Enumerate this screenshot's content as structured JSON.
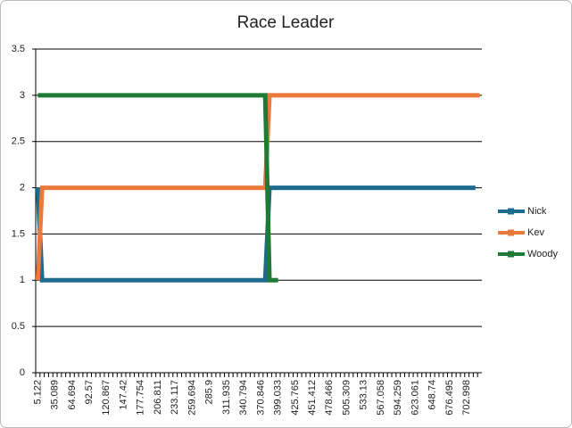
{
  "chart_data": {
    "type": "line",
    "title": "Race Leader",
    "categories": [
      "5.122",
      null,
      null,
      null,
      "35.089",
      null,
      null,
      null,
      "64.694",
      null,
      null,
      null,
      "92.57",
      null,
      null,
      null,
      "120.867",
      null,
      null,
      null,
      "147.42",
      null,
      null,
      null,
      "177.754",
      null,
      null,
      null,
      "206.811",
      null,
      null,
      null,
      "233.117",
      null,
      null,
      null,
      "259.694",
      null,
      null,
      null,
      "285.9",
      null,
      null,
      null,
      "311.935",
      null,
      null,
      null,
      "340.794",
      null,
      null,
      null,
      "370.846",
      null,
      null,
      null,
      "399.033",
      null,
      null,
      null,
      "425.765",
      null,
      null,
      null,
      "451.412",
      null,
      null,
      null,
      "478.466",
      null,
      null,
      null,
      "505.309",
      null,
      null,
      null,
      "533.13",
      null,
      null,
      null,
      "567.058",
      null,
      null,
      null,
      "594.259",
      null,
      null,
      null,
      "623.061",
      null,
      null,
      null,
      "648.74",
      null,
      null,
      null,
      "676.495",
      null,
      null,
      null,
      "702.998",
      null,
      null,
      null
    ],
    "series": [
      {
        "name": "Nick",
        "color": "#1d6b8e",
        "values": [
          2,
          1,
          1,
          1,
          1,
          1,
          1,
          1,
          1,
          1,
          1,
          1,
          1,
          1,
          1,
          1,
          1,
          1,
          1,
          1,
          1,
          1,
          1,
          1,
          1,
          1,
          1,
          1,
          1,
          1,
          1,
          1,
          1,
          1,
          1,
          1,
          1,
          1,
          1,
          1,
          1,
          1,
          1,
          1,
          1,
          1,
          1,
          1,
          1,
          1,
          1,
          1,
          1,
          1,
          2,
          2,
          2,
          2,
          2,
          2,
          2,
          2,
          2,
          2,
          2,
          2,
          2,
          2,
          2,
          2,
          2,
          2,
          2,
          2,
          2,
          2,
          2,
          2,
          2,
          2,
          2,
          2,
          2,
          2,
          2,
          2,
          2,
          2,
          2,
          2,
          2,
          2,
          2,
          2,
          2,
          2,
          2,
          2,
          2,
          2,
          2,
          2,
          2,
          null
        ]
      },
      {
        "name": "Kev",
        "color": "#ea7a3c",
        "values": [
          1,
          2,
          2,
          2,
          2,
          2,
          2,
          2,
          2,
          2,
          2,
          2,
          2,
          2,
          2,
          2,
          2,
          2,
          2,
          2,
          2,
          2,
          2,
          2,
          2,
          2,
          2,
          2,
          2,
          2,
          2,
          2,
          2,
          2,
          2,
          2,
          2,
          2,
          2,
          2,
          2,
          2,
          2,
          2,
          2,
          2,
          2,
          2,
          2,
          2,
          2,
          2,
          2,
          2,
          3,
          3,
          3,
          3,
          3,
          3,
          3,
          3,
          3,
          3,
          3,
          3,
          3,
          3,
          3,
          3,
          3,
          3,
          3,
          3,
          3,
          3,
          3,
          3,
          3,
          3,
          3,
          3,
          3,
          3,
          3,
          3,
          3,
          3,
          3,
          3,
          3,
          3,
          3,
          3,
          3,
          3,
          3,
          3,
          3,
          3,
          3,
          3,
          3,
          3
        ]
      },
      {
        "name": "Woody",
        "color": "#1f7a35",
        "values": [
          3,
          3,
          3,
          3,
          3,
          3,
          3,
          3,
          3,
          3,
          3,
          3,
          3,
          3,
          3,
          3,
          3,
          3,
          3,
          3,
          3,
          3,
          3,
          3,
          3,
          3,
          3,
          3,
          3,
          3,
          3,
          3,
          3,
          3,
          3,
          3,
          3,
          3,
          3,
          3,
          3,
          3,
          3,
          3,
          3,
          3,
          3,
          3,
          3,
          3,
          3,
          3,
          3,
          3,
          1,
          1,
          1,
          null,
          null,
          null,
          null,
          null,
          null,
          null,
          null,
          null,
          null,
          null,
          null,
          null,
          null,
          null,
          null,
          null,
          null,
          null,
          null,
          null,
          null,
          null,
          null,
          null,
          null,
          null,
          null,
          null,
          null,
          null,
          null,
          null,
          null,
          null,
          null,
          null,
          null,
          null,
          null,
          null,
          null,
          null,
          null,
          null,
          null,
          null
        ]
      }
    ],
    "ylim": [
      0,
      3.5
    ],
    "yticks": [
      0,
      0.5,
      1,
      1.5,
      2,
      2.5,
      3,
      3.5
    ],
    "grid": true,
    "legend": "right"
  }
}
